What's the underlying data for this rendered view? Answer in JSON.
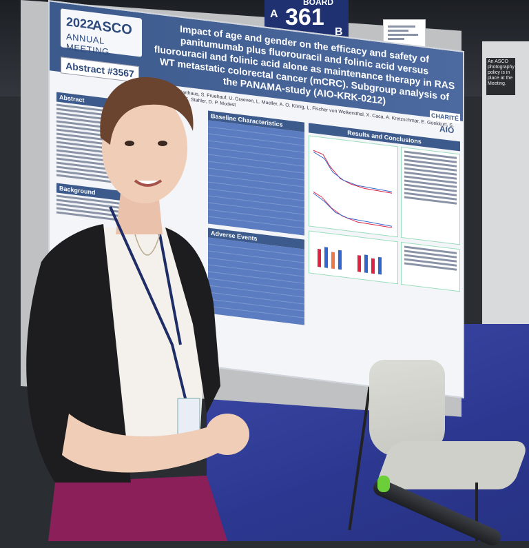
{
  "poster": {
    "conference_year": "2022",
    "conference_name": "ASCO",
    "conference_sub": "ANNUAL MEETING",
    "abstract_number": "Abstract #3567",
    "title": "Impact of age and gender on the efficacy and safety of panitumumab plus fluorouracil and folinic acid versus fluorouracil and folinic acid alone as maintenance therapy in RAS WT metastatic colorectal cancer (mCRC). Subgroup analysis of the PANAMA-study (AIO-KRK-0212)",
    "authors": "K. Heinrich, M. Karthaus, S. Fruehauf, U. Graeven, L. Mueller, A. O. König, L. Fischer von Weikersthal, X. Caca, A. Kretzschmar, E. Goekkurt, S. Haas, A. Kurreck, S. Stahler, D. P. Modest",
    "sections": [
      "Abstract",
      "Background"
    ],
    "baseline_heading": "Baseline Characteristics",
    "results_heading": "Results and Conclusions",
    "adverse_heading": "Adverse Events",
    "logo_right_1": "CHARITÉ",
    "logo_right_2": "AIO"
  },
  "board": {
    "label": "BOARD",
    "number": "361",
    "side_a": "A",
    "side_b": "B"
  },
  "sign": {
    "text": "An ASCO photography policy is in place at the Meeting."
  },
  "colors": {
    "poster_header": "#3d5a8c",
    "board_sign": "#1f3170",
    "carpet": "#2c3890",
    "cardigan": "#1d1d1f",
    "skirt": "#8a1f5a"
  }
}
